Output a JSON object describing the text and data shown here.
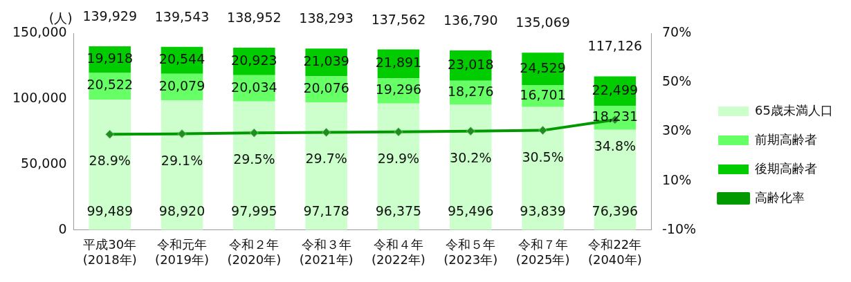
{
  "chart_data": {
    "type": "bar",
    "stacked": true,
    "ylabel": "(人)",
    "legend": "right",
    "categories": [
      "平成30年\n(2018年)",
      "令和元年\n(2019年)",
      "令和２年\n(2020年)",
      "令和３年\n(2021年)",
      "令和４年\n(2022年)",
      "令和５年\n(2023年)",
      "令和７年\n(2025年)",
      "令和22年\n(2040年)"
    ],
    "series": [
      {
        "name": "65歳未満人口",
        "color": "#ccffcc",
        "values": [
          99489,
          98920,
          97995,
          97178,
          96375,
          95496,
          93839,
          76396
        ],
        "value_labels": [
          "99,489",
          "98,920",
          "97,995",
          "97,178",
          "96,375",
          "95,496",
          "93,839",
          "76,396"
        ]
      },
      {
        "name": "前期高齢者",
        "color": "#66ff66",
        "values": [
          20522,
          20079,
          20034,
          20076,
          19296,
          18276,
          16701,
          18231
        ],
        "value_labels": [
          "20,522",
          "20,079",
          "20,034",
          "20,076",
          "19,296",
          "18,276",
          "16,701",
          "18,231"
        ]
      },
      {
        "name": "後期高齢者",
        "color": "#00cc00",
        "values": [
          19918,
          20544,
          20923,
          21039,
          21891,
          23018,
          24529,
          22499
        ],
        "value_labels": [
          "19,918",
          "20,544",
          "20,923",
          "21,039",
          "21,891",
          "23,018",
          "24,529",
          "22,499"
        ]
      },
      {
        "name": "高齢化率",
        "type": "line",
        "axis": "y2",
        "marker": "diamond",
        "color": "#009900",
        "values": [
          28.9,
          29.1,
          29.5,
          29.7,
          29.9,
          30.2,
          30.5,
          34.8
        ],
        "value_labels": [
          "28.9%",
          "29.1%",
          "29.5%",
          "29.7%",
          "29.9%",
          "30.2%",
          "30.5%",
          "34.8%"
        ]
      }
    ],
    "totals": [
      "139,929",
      "139,543",
      "138,952",
      "138,293",
      "137,562",
      "136,790",
      "135,069",
      "117,126"
    ],
    "ylim": [
      0,
      150000
    ],
    "yticks": [
      {
        "value": 0,
        "label": "0"
      },
      {
        "value": 50000,
        "label": "50,000"
      },
      {
        "value": 100000,
        "label": "100,000"
      },
      {
        "value": 150000,
        "label": "150,000"
      }
    ],
    "y2lim": [
      -10,
      70
    ],
    "y2ticks": [
      {
        "value": -10,
        "label": "-10%"
      },
      {
        "value": 10,
        "label": "10%"
      },
      {
        "value": 30,
        "label": "30%"
      },
      {
        "value": 50,
        "label": "50%"
      },
      {
        "value": 70,
        "label": "70%"
      }
    ]
  }
}
